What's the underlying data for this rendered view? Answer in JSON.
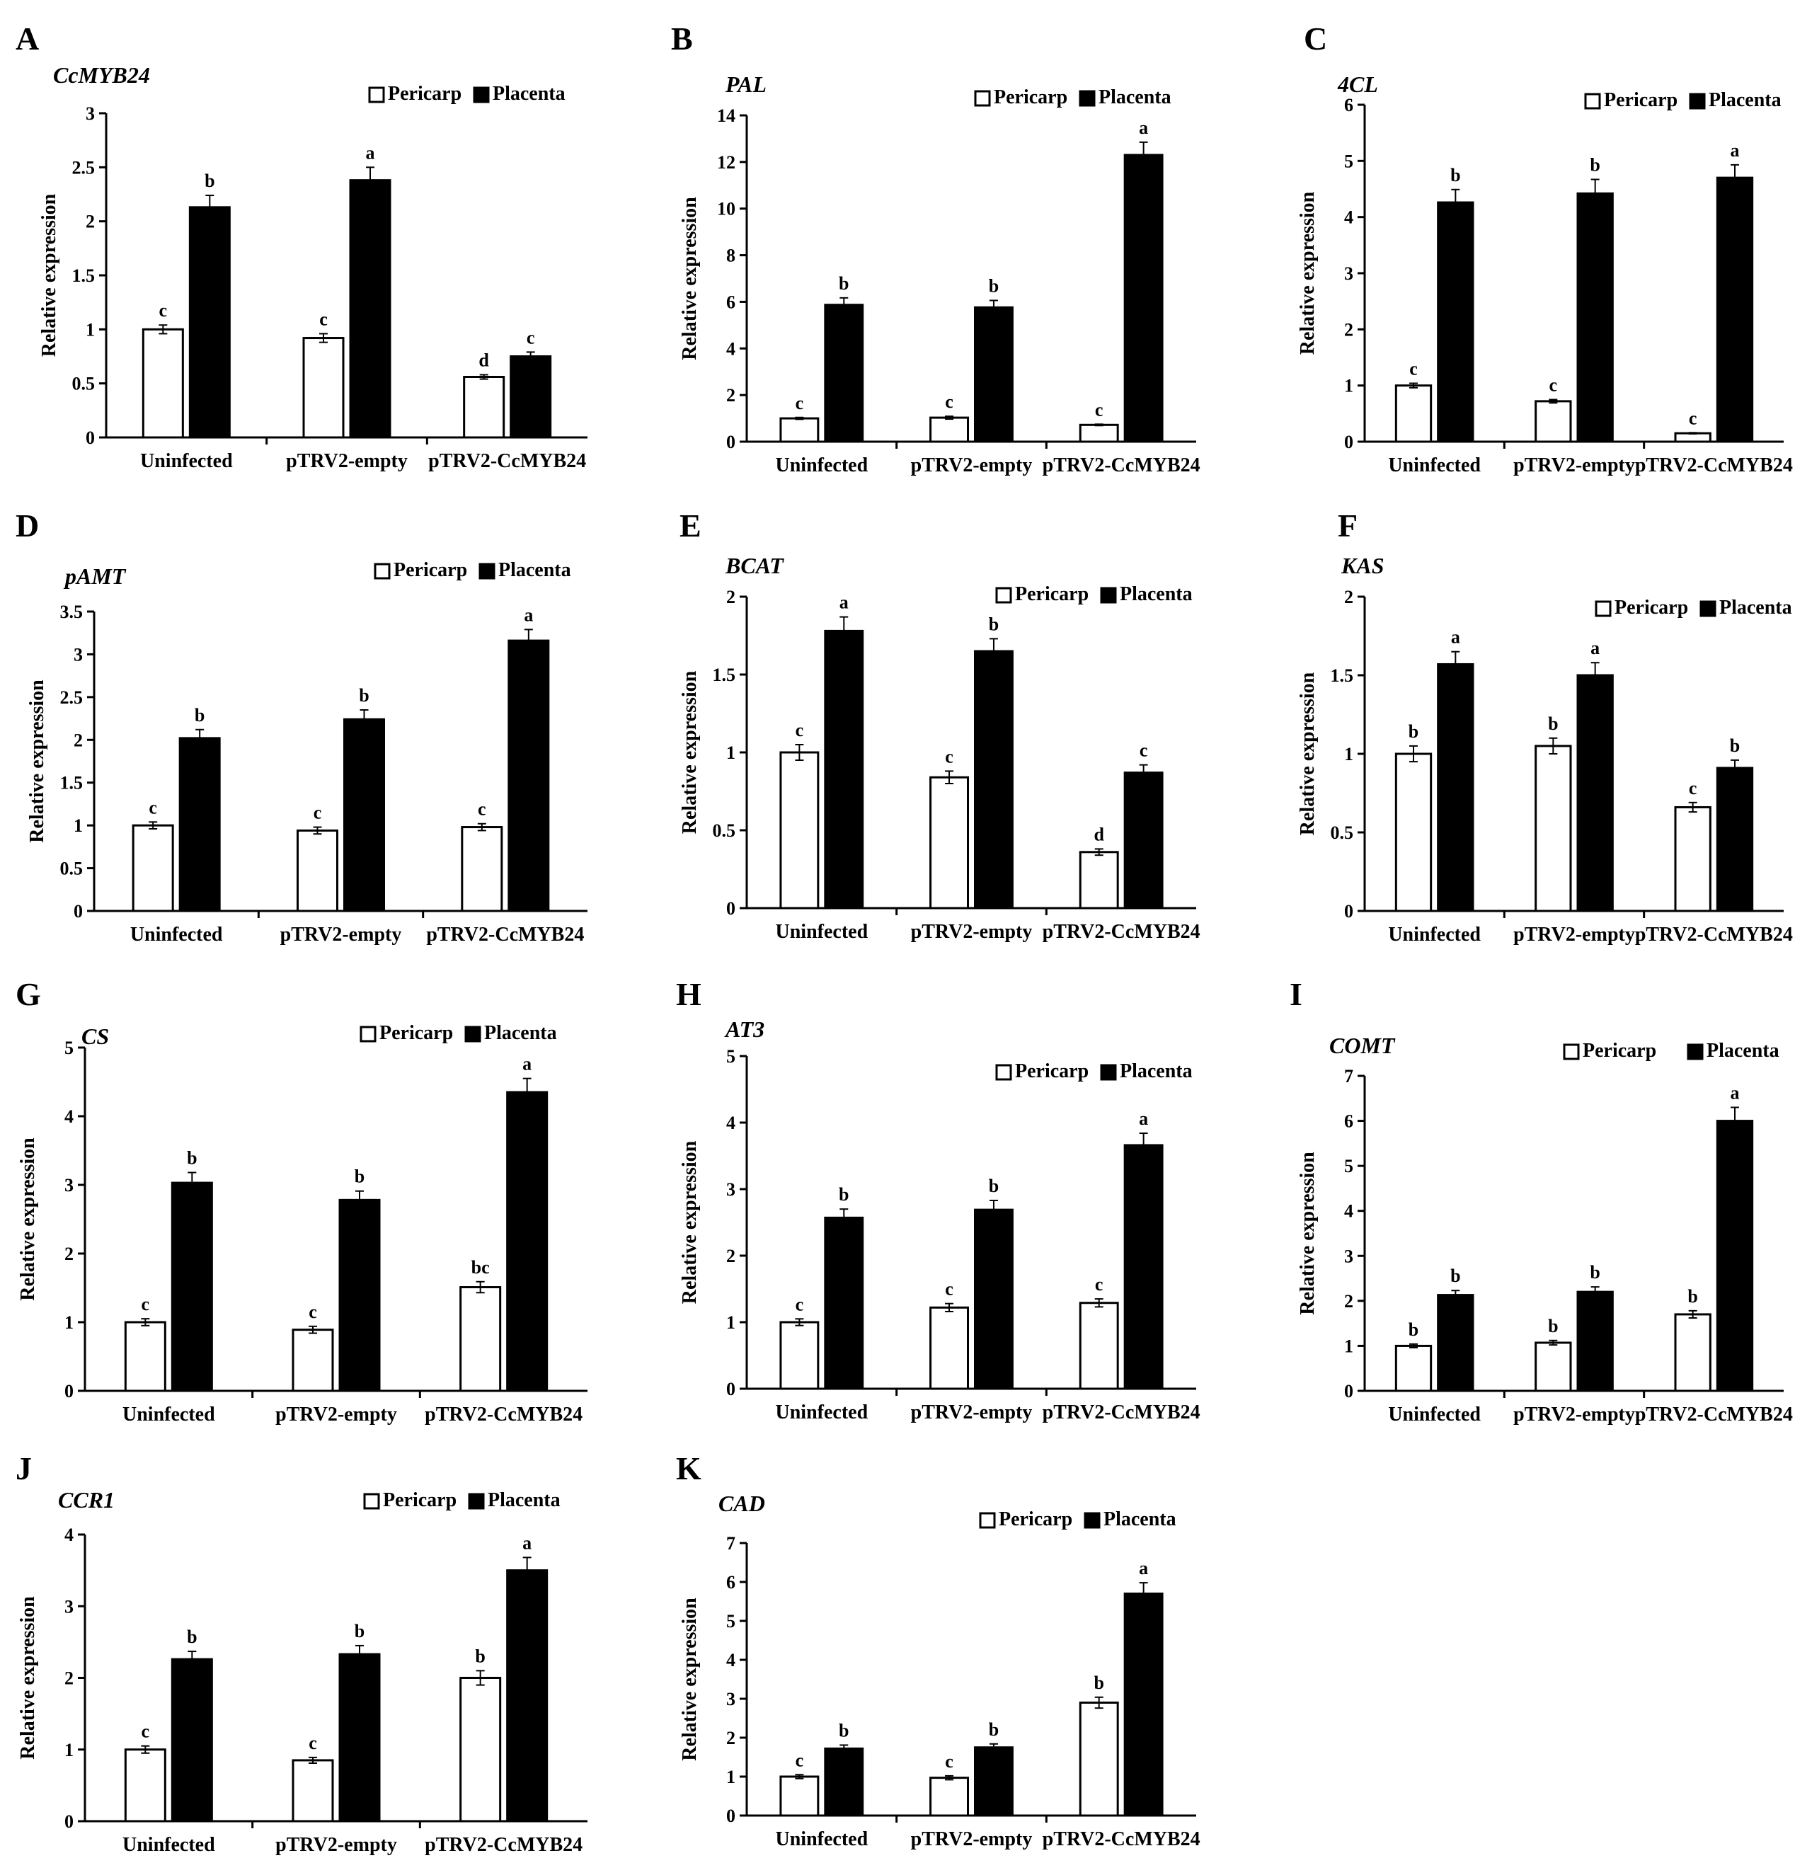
{
  "figure": {
    "categories": [
      "Uninfected",
      "pTRV2-empty",
      "pTRV2-CcMYB24"
    ],
    "legend": [
      "Pericarp",
      "Placenta"
    ],
    "ylabel": "Relative expression"
  },
  "chart_data": [
    {
      "panel": "A",
      "type": "bar",
      "title": "CcMYB24",
      "ylabel": "Relative expression",
      "categories": [
        "Uninfected",
        "pTRV2-empty",
        "pTRV2-CcMYB24"
      ],
      "ylim": [
        0,
        3
      ],
      "yticks": [
        "0",
        "0.5",
        "1",
        "1.5",
        "2",
        "2.5",
        "3"
      ],
      "series": [
        {
          "name": "Pericarp",
          "values": [
            1.0,
            0.92,
            0.56
          ],
          "errors": [
            0.04,
            0.04,
            0.02
          ],
          "labels": [
            "c",
            "c",
            "d"
          ]
        },
        {
          "name": "Placenta",
          "values": [
            2.13,
            2.38,
            0.75
          ],
          "errors": [
            0.11,
            0.12,
            0.04
          ],
          "labels": [
            "b",
            "a",
            "c"
          ]
        }
      ]
    },
    {
      "panel": "B",
      "type": "bar",
      "title": "PAL",
      "ylabel": "Relative  expression",
      "categories": [
        "Uninfected",
        "pTRV2-empty",
        "pTRV2-CcMYB24"
      ],
      "ylim": [
        0,
        14
      ],
      "yticks": [
        "0",
        "2",
        "4",
        "6",
        "8",
        "10",
        "12",
        "14"
      ],
      "series": [
        {
          "name": "Pericarp",
          "values": [
            1.0,
            1.03,
            0.72
          ],
          "errors": [
            0.04,
            0.06,
            0.03
          ],
          "labels": [
            "c",
            "c",
            "c"
          ]
        },
        {
          "name": "Placenta",
          "values": [
            5.87,
            5.76,
            12.3
          ],
          "errors": [
            0.3,
            0.3,
            0.55
          ],
          "labels": [
            "b",
            "b",
            "a"
          ]
        }
      ]
    },
    {
      "panel": "C",
      "type": "bar",
      "title": "4CL",
      "ylabel": "Relative expression",
      "categories": [
        "Uninfected",
        "pTRV2-empty",
        "pTRV2-CcMYB24"
      ],
      "ylim": [
        0,
        6
      ],
      "yticks": [
        "0",
        "1",
        "2",
        "3",
        "4",
        "5",
        "6"
      ],
      "series": [
        {
          "name": "Pericarp",
          "values": [
            1.0,
            0.72,
            0.15
          ],
          "errors": [
            0.04,
            0.03,
            0.01
          ],
          "labels": [
            "c",
            "c",
            "c"
          ]
        },
        {
          "name": "Placenta",
          "values": [
            4.26,
            4.42,
            4.7
          ],
          "errors": [
            0.23,
            0.25,
            0.23
          ],
          "labels": [
            "b",
            "b",
            "a"
          ]
        }
      ]
    },
    {
      "panel": "D",
      "type": "bar",
      "title": "pAMT",
      "ylabel": "Relative expression",
      "categories": [
        "Uninfected",
        "pTRV2-empty",
        "pTRV2-CcMYB24"
      ],
      "ylim": [
        0,
        3.5
      ],
      "yticks": [
        "0",
        "0.5",
        "1",
        "1.5",
        "2",
        "2.5",
        "3",
        "3.5"
      ],
      "series": [
        {
          "name": "Pericarp",
          "values": [
            1.0,
            0.94,
            0.98
          ],
          "errors": [
            0.04,
            0.04,
            0.04
          ],
          "labels": [
            "c",
            "c",
            "c"
          ]
        },
        {
          "name": "Placenta",
          "values": [
            2.02,
            2.24,
            3.16
          ],
          "errors": [
            0.1,
            0.11,
            0.13
          ],
          "labels": [
            "b",
            "b",
            "a"
          ]
        }
      ]
    },
    {
      "panel": "E",
      "type": "bar",
      "title": "BCAT",
      "ylabel": "Relative expression",
      "categories": [
        "Uninfected",
        "pTRV2-empty",
        "pTRV2-CcMYB24"
      ],
      "ylim": [
        0,
        2
      ],
      "yticks": [
        "0",
        "0.5",
        "1",
        "1.5",
        "2"
      ],
      "series": [
        {
          "name": "Pericarp",
          "values": [
            1.0,
            0.84,
            0.36
          ],
          "errors": [
            0.05,
            0.04,
            0.02
          ],
          "labels": [
            "c",
            "c",
            "d"
          ]
        },
        {
          "name": "Placenta",
          "values": [
            1.78,
            1.65,
            0.87
          ],
          "errors": [
            0.09,
            0.08,
            0.05
          ],
          "labels": [
            "a",
            "b",
            "c"
          ]
        }
      ]
    },
    {
      "panel": "F",
      "type": "bar",
      "title": "KAS",
      "ylabel": "Relative expression",
      "categories": [
        "Uninfected",
        "pTRV2-empty",
        "pTRV2-CcMYB24"
      ],
      "ylim": [
        0,
        2
      ],
      "yticks": [
        "0",
        "0.5",
        "1",
        "1.5",
        "2"
      ],
      "series": [
        {
          "name": "Pericarp",
          "values": [
            1.0,
            1.05,
            0.66
          ],
          "errors": [
            0.05,
            0.05,
            0.03
          ],
          "labels": [
            "b",
            "b",
            "c"
          ]
        },
        {
          "name": "Placenta",
          "values": [
            1.57,
            1.5,
            0.91
          ],
          "errors": [
            0.08,
            0.08,
            0.05
          ],
          "labels": [
            "a",
            "a",
            "b"
          ]
        }
      ]
    },
    {
      "panel": "G",
      "type": "bar",
      "title": "CS",
      "ylabel": "Relative expression",
      "categories": [
        "Uninfected",
        "pTRV2-empty",
        "pTRV2-CcMYB24"
      ],
      "ylim": [
        0,
        5
      ],
      "yticks": [
        "0",
        "1",
        "2",
        "3",
        "4",
        "5"
      ],
      "series": [
        {
          "name": "Pericarp",
          "values": [
            1.0,
            0.89,
            1.51
          ],
          "errors": [
            0.05,
            0.05,
            0.08
          ],
          "labels": [
            "c",
            "c",
            "bc"
          ]
        },
        {
          "name": "Placenta",
          "values": [
            3.03,
            2.78,
            4.35
          ],
          "errors": [
            0.15,
            0.13,
            0.2
          ],
          "labels": [
            "b",
            "b",
            "a"
          ]
        }
      ]
    },
    {
      "panel": "H",
      "type": "bar",
      "title": "AT3",
      "ylabel": "Relative expression",
      "categories": [
        "Uninfected",
        "pTRV2-empty",
        "pTRV2-CcMYB24"
      ],
      "ylim": [
        0,
        5
      ],
      "yticks": [
        "0",
        "1",
        "2",
        "3",
        "4",
        "5"
      ],
      "series": [
        {
          "name": "Pericarp",
          "values": [
            1.0,
            1.22,
            1.29
          ],
          "errors": [
            0.05,
            0.06,
            0.06
          ],
          "labels": [
            "c",
            "c",
            "c"
          ]
        },
        {
          "name": "Placenta",
          "values": [
            2.57,
            2.69,
            3.66
          ],
          "errors": [
            0.13,
            0.14,
            0.18
          ],
          "labels": [
            "b",
            "b",
            "a"
          ]
        }
      ]
    },
    {
      "panel": "I",
      "type": "bar",
      "title": "COMT",
      "ylabel": "Relative expression",
      "categories": [
        "Uninfected",
        "pTRV2-empty",
        "pTRV2-CcMYB24"
      ],
      "ylim": [
        0,
        7
      ],
      "yticks": [
        "0",
        "1",
        "2",
        "3",
        "4",
        "5",
        "6",
        "7"
      ],
      "series": [
        {
          "name": "Pericarp",
          "values": [
            1.0,
            1.07,
            1.7
          ],
          "errors": [
            0.04,
            0.05,
            0.08
          ],
          "labels": [
            "b",
            "b",
            "b"
          ]
        },
        {
          "name": "Placenta",
          "values": [
            2.13,
            2.2,
            6.0
          ],
          "errors": [
            0.1,
            0.11,
            0.3
          ],
          "labels": [
            "b",
            "b",
            "a"
          ]
        }
      ]
    },
    {
      "panel": "J",
      "type": "bar",
      "title": "CCR1",
      "ylabel": "Relative expression",
      "categories": [
        "Uninfected",
        "pTRV2-empty",
        "pTRV2-CcMYB24"
      ],
      "ylim": [
        0,
        4
      ],
      "yticks": [
        "0",
        "1",
        "2",
        "3",
        "4"
      ],
      "series": [
        {
          "name": "Pericarp",
          "values": [
            1.0,
            0.85,
            2.0
          ],
          "errors": [
            0.05,
            0.04,
            0.1
          ],
          "labels": [
            "c",
            "c",
            "b"
          ]
        },
        {
          "name": "Placenta",
          "values": [
            2.26,
            2.33,
            3.5
          ],
          "errors": [
            0.11,
            0.12,
            0.18
          ],
          "labels": [
            "b",
            "b",
            "a"
          ]
        }
      ]
    },
    {
      "panel": "K",
      "type": "bar",
      "title": "CAD",
      "ylabel": "Relative expression",
      "categories": [
        "Uninfected",
        "pTRV2-empty",
        "pTRV2-CcMYB24"
      ],
      "ylim": [
        0,
        7
      ],
      "yticks": [
        "0",
        "1",
        "2",
        "3",
        "4",
        "5",
        "6",
        "7"
      ],
      "series": [
        {
          "name": "Pericarp",
          "values": [
            1.0,
            0.97,
            2.9
          ],
          "errors": [
            0.05,
            0.05,
            0.14
          ],
          "labels": [
            "c",
            "c",
            "b"
          ]
        },
        {
          "name": "Placenta",
          "values": [
            1.72,
            1.75,
            5.7
          ],
          "errors": [
            0.09,
            0.09,
            0.28
          ],
          "labels": [
            "b",
            "b",
            "a"
          ]
        }
      ]
    }
  ]
}
